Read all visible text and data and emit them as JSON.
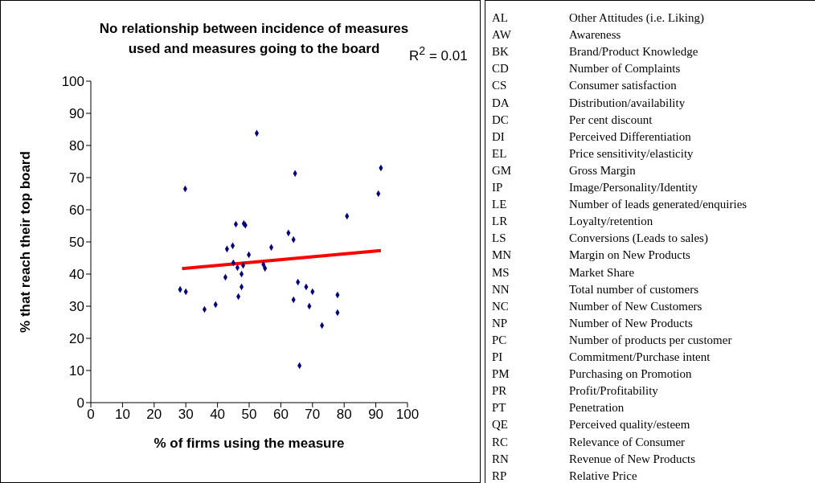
{
  "chart_data": [
    {
      "type": "scatter",
      "title": "No relationship between incidence of measures used and measures going to the board",
      "xlabel": "% of firms using the measure",
      "ylabel": "% that reach their top board",
      "annotations": [
        "R$^{2}$ = 0.01"
      ],
      "xlim": [
        0,
        100
      ],
      "xticks": [
        0,
        10,
        20,
        30,
        40,
        50,
        60,
        70,
        80,
        90,
        100
      ],
      "ylim": [
        0,
        100
      ],
      "yticks": [
        0,
        10,
        20,
        30,
        40,
        50,
        60,
        70,
        80,
        90,
        100
      ],
      "grid": false,
      "legend": false,
      "series": [
        {
          "type": "scatter",
          "marker": "diamond",
          "color": "#000080",
          "x": [
            28.2,
            30,
            29.8,
            35.9,
            39.4,
            42.5,
            43,
            44.8,
            45,
            45.8,
            48.3,
            48.8,
            46.3,
            48.1,
            47.6,
            47.6,
            46.6,
            49.9,
            54.5,
            55,
            57,
            52.4,
            62.4,
            64,
            64.5,
            64,
            65.4,
            68,
            70,
            69,
            65.9,
            73,
            77.9,
            77.9,
            80.9,
            90.8,
            91.6
          ],
          "values": [
            35.2,
            34.5,
            66.5,
            29,
            30.5,
            39,
            47.8,
            48.8,
            43.5,
            55.5,
            55.7,
            55.2,
            42,
            42.7,
            40,
            36,
            33,
            46,
            43,
            41.8,
            48.3,
            83.8,
            52.8,
            50.7,
            71.3,
            32,
            37.5,
            36,
            34.5,
            30,
            11.5,
            24,
            33.5,
            28,
            58,
            65,
            73
          ]
        },
        {
          "type": "line",
          "marker": "none",
          "color": "#ff0000",
          "x": [
            28.8,
            91.6
          ],
          "values": [
            41.7,
            47.3
          ]
        }
      ]
    },
    {
      "type": "other",
      "annotations": [
        "AL",
        "Other Attitudes (i.e. Liking)",
        "AW",
        "Awareness",
        "BK",
        "Brand/Product Knowledge",
        "CD",
        "Number of Complaints",
        "CS",
        "Consumer satisfaction",
        "DA",
        "Distribution/availability",
        "DC",
        "Per cent discount",
        "DI",
        "Perceived Differentiation",
        "EL",
        "Price sensitivity/elasticity",
        "GM",
        "Gross Margin",
        "IP",
        "Image/Personality/Identity",
        "LE",
        "Number of leads generated/enquiries",
        "LR",
        "Loyalty/retention",
        "LS",
        "Conversions (Leads to sales)",
        "MN",
        "Margin on New Products",
        "MS",
        "Market Share",
        "NN",
        "Total number of customers",
        "NC",
        "Number of New Customers",
        "NP",
        "Number of New Products",
        "PC",
        "Number of products per customer",
        "PI",
        "Commitment/Purchase intent",
        "PM",
        "Purchasing on Promotion",
        "PR",
        "Profit/Profitability",
        "PT",
        "Penetration",
        "QE",
        "Perceived quality/esteem",
        "RC",
        "Relevance of Consumer",
        "RN",
        "Revenue of New Products",
        "RP",
        "Relative Price"
      ]
    }
  ]
}
